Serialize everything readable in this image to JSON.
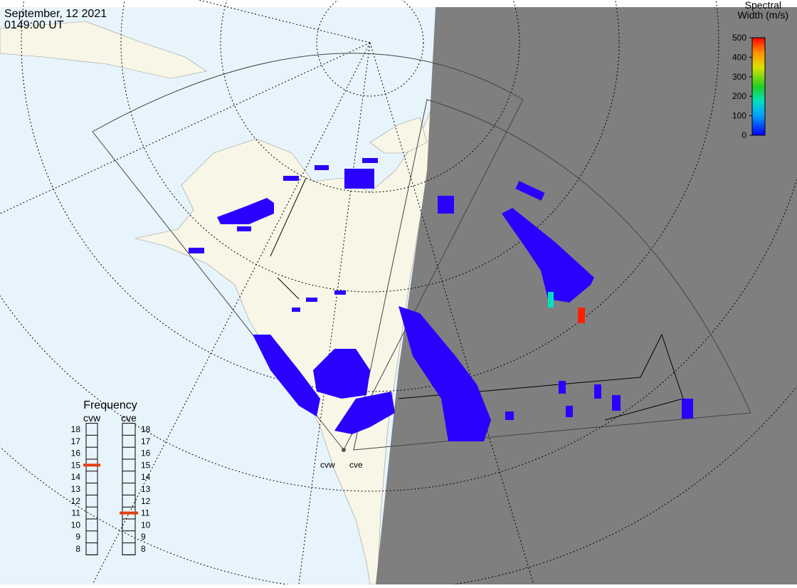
{
  "header": {
    "date": "September, 12 2021",
    "time": "0149:00 UT"
  },
  "colorbar": {
    "title": [
      "Spectral",
      "Width (m/s)"
    ],
    "lim": [
      0,
      500
    ],
    "ticks": [
      0,
      100,
      200,
      300,
      400,
      500
    ]
  },
  "frequency": {
    "title": "Frequency",
    "ticks": [
      8,
      9,
      10,
      11,
      12,
      13,
      14,
      15,
      16,
      17,
      18
    ],
    "radars": [
      {
        "name": "cvw",
        "value": 15
      },
      {
        "name": "cve",
        "value": 11
      }
    ]
  },
  "sites": [
    "cvw",
    "cve"
  ]
}
